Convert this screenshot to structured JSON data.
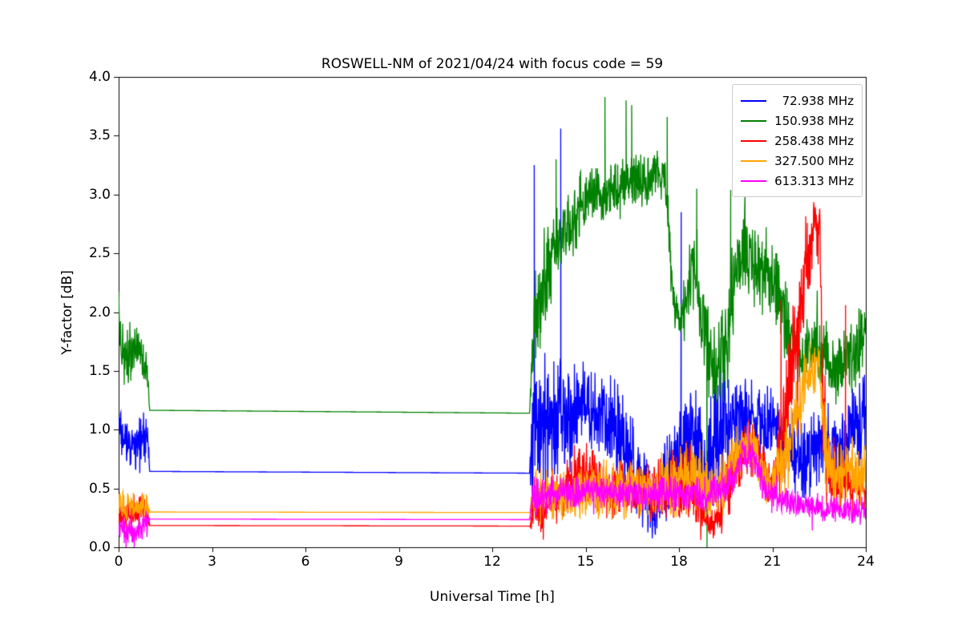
{
  "chart_data": {
    "type": "line",
    "title": "ROSWELL-NM of 2021/04/24 with focus code = 59",
    "xlabel": "Universal Time [h]",
    "ylabel": "Y-factor [dB]",
    "xlim": [
      0,
      24
    ],
    "ylim": [
      0.0,
      4.0
    ],
    "xticks": [
      0,
      3,
      6,
      9,
      12,
      15,
      18,
      21,
      24
    ],
    "xtick_labels": [
      "0",
      "3",
      "6",
      "9",
      "12",
      "15",
      "18",
      "21",
      "24"
    ],
    "yticks": [
      0.0,
      0.5,
      1.0,
      1.5,
      2.0,
      2.5,
      3.0,
      3.5,
      4.0
    ],
    "ytick_labels": [
      "0.0",
      "0.5",
      "1.0",
      "1.5",
      "2.0",
      "2.5",
      "3.0",
      "3.5",
      "4.0"
    ],
    "grid": false,
    "legend_position": "upper right",
    "series": [
      {
        "name": "72.938 MHz",
        "color": "#0000ff",
        "anchors": [
          [
            0.0,
            1.12,
            0.06
          ],
          [
            0.07,
            0.92,
            0.18
          ],
          [
            0.3,
            0.85,
            0.2
          ],
          [
            0.6,
            0.88,
            0.18
          ],
          [
            0.92,
            0.92,
            0.18
          ],
          [
            1.0,
            0.645,
            0
          ],
          [
            13.2,
            0.63,
            0
          ],
          [
            13.28,
            0.9,
            0.45
          ],
          [
            13.5,
            1.15,
            0.55
          ],
          [
            13.8,
            1.0,
            0.45
          ],
          [
            14.1,
            1.1,
            0.5
          ],
          [
            14.5,
            1.15,
            0.35
          ],
          [
            15.0,
            1.2,
            0.3
          ],
          [
            15.5,
            1.15,
            0.3
          ],
          [
            16.0,
            1.0,
            0.35
          ],
          [
            16.4,
            0.75,
            0.35
          ],
          [
            16.8,
            0.45,
            0.3
          ],
          [
            17.2,
            0.35,
            0.25
          ],
          [
            17.6,
            0.55,
            0.35
          ],
          [
            18.0,
            0.85,
            0.4
          ],
          [
            18.3,
            1.0,
            0.45
          ],
          [
            18.6,
            0.9,
            0.45
          ],
          [
            18.9,
            0.7,
            0.35
          ],
          [
            19.2,
            0.9,
            0.5
          ],
          [
            19.5,
            1.15,
            0.5
          ],
          [
            19.8,
            0.95,
            0.35
          ],
          [
            20.1,
            1.05,
            0.3
          ],
          [
            20.5,
            1.12,
            0.28
          ],
          [
            21.0,
            1.1,
            0.28
          ],
          [
            21.3,
            0.9,
            0.3
          ],
          [
            21.7,
            0.8,
            0.28
          ],
          [
            22.1,
            0.75,
            0.28
          ],
          [
            22.5,
            0.85,
            0.3
          ],
          [
            22.9,
            0.8,
            0.3
          ],
          [
            23.3,
            0.9,
            0.3
          ],
          [
            23.7,
            1.05,
            0.32
          ],
          [
            24.0,
            1.1,
            0.3
          ]
        ],
        "spikes": [
          [
            13.35,
            3.25
          ],
          [
            14.2,
            3.56
          ],
          [
            18.07,
            2.85
          ]
        ]
      },
      {
        "name": "150.938 MHz",
        "color": "#008000",
        "anchors": [
          [
            0.0,
            2.12,
            0.06
          ],
          [
            0.08,
            1.6,
            0.22
          ],
          [
            0.35,
            1.62,
            0.22
          ],
          [
            0.65,
            1.68,
            0.18
          ],
          [
            0.92,
            1.48,
            0.12
          ],
          [
            1.0,
            1.165,
            0
          ],
          [
            13.2,
            1.14,
            0
          ],
          [
            13.3,
            1.85,
            0.35
          ],
          [
            13.55,
            2.1,
            0.4
          ],
          [
            13.85,
            2.45,
            0.35
          ],
          [
            14.15,
            2.6,
            0.3
          ],
          [
            14.5,
            2.72,
            0.28
          ],
          [
            14.9,
            2.95,
            0.22
          ],
          [
            15.3,
            3.0,
            0.2
          ],
          [
            15.7,
            3.05,
            0.2
          ],
          [
            16.1,
            3.08,
            0.2
          ],
          [
            16.5,
            3.1,
            0.2
          ],
          [
            16.9,
            3.12,
            0.18
          ],
          [
            17.3,
            3.18,
            0.15
          ],
          [
            17.55,
            3.15,
            0.15
          ],
          [
            17.8,
            2.2,
            0.25
          ],
          [
            18.0,
            1.9,
            0.15
          ],
          [
            18.2,
            2.1,
            0.3
          ],
          [
            18.45,
            2.35,
            0.3
          ],
          [
            18.7,
            1.95,
            0.3
          ],
          [
            18.95,
            1.6,
            0.35
          ],
          [
            19.2,
            1.5,
            0.3
          ],
          [
            19.5,
            1.7,
            0.4
          ],
          [
            19.8,
            2.3,
            0.35
          ],
          [
            20.1,
            2.5,
            0.3
          ],
          [
            20.45,
            2.4,
            0.28
          ],
          [
            20.8,
            2.3,
            0.28
          ],
          [
            21.1,
            2.15,
            0.3
          ],
          [
            21.5,
            1.85,
            0.3
          ],
          [
            21.9,
            1.65,
            0.28
          ],
          [
            22.3,
            1.7,
            0.3
          ],
          [
            22.7,
            1.6,
            0.28
          ],
          [
            23.1,
            1.55,
            0.25
          ],
          [
            23.5,
            1.65,
            0.3
          ],
          [
            23.8,
            1.75,
            0.3
          ],
          [
            24.0,
            1.95,
            0.2
          ]
        ],
        "spikes": [
          [
            14.05,
            3.3
          ],
          [
            15.62,
            3.83
          ],
          [
            16.3,
            3.8
          ],
          [
            16.48,
            3.76
          ],
          [
            17.62,
            3.66
          ],
          [
            18.57,
            3.05
          ],
          [
            18.9,
            0.0
          ],
          [
            19.66,
            3.04
          ],
          [
            20.12,
            3.0
          ]
        ]
      },
      {
        "name": "258.438 MHz",
        "color": "#ff0000",
        "anchors": [
          [
            0.0,
            0.3,
            0.14
          ],
          [
            0.4,
            0.3,
            0.12
          ],
          [
            0.92,
            0.33,
            0.1
          ],
          [
            1.0,
            0.185,
            0
          ],
          [
            13.2,
            0.18,
            0
          ],
          [
            13.3,
            0.3,
            0.2
          ],
          [
            13.7,
            0.35,
            0.22
          ],
          [
            14.1,
            0.45,
            0.22
          ],
          [
            14.5,
            0.55,
            0.22
          ],
          [
            14.9,
            0.65,
            0.2
          ],
          [
            15.2,
            0.6,
            0.2
          ],
          [
            15.6,
            0.5,
            0.2
          ],
          [
            16.0,
            0.48,
            0.2
          ],
          [
            16.4,
            0.5,
            0.2
          ],
          [
            16.8,
            0.5,
            0.2
          ],
          [
            17.2,
            0.48,
            0.2
          ],
          [
            17.6,
            0.5,
            0.22
          ],
          [
            18.0,
            0.55,
            0.28
          ],
          [
            18.35,
            0.6,
            0.3
          ],
          [
            18.65,
            0.35,
            0.18
          ],
          [
            18.95,
            0.2,
            0.12
          ],
          [
            19.25,
            0.25,
            0.15
          ],
          [
            19.55,
            0.5,
            0.22
          ],
          [
            19.85,
            0.7,
            0.22
          ],
          [
            20.15,
            0.85,
            0.2
          ],
          [
            20.45,
            0.82,
            0.2
          ],
          [
            20.75,
            0.62,
            0.2
          ],
          [
            21.0,
            0.5,
            0.15
          ],
          [
            21.35,
            0.9,
            0.4
          ],
          [
            21.6,
            1.5,
            0.45
          ],
          [
            21.9,
            2.1,
            0.4
          ],
          [
            22.15,
            2.5,
            0.3
          ],
          [
            22.4,
            2.75,
            0.2
          ],
          [
            22.52,
            2.7,
            0.25
          ],
          [
            22.62,
            1.3,
            0.5
          ],
          [
            22.75,
            0.65,
            0.28
          ],
          [
            23.0,
            0.6,
            0.22
          ],
          [
            23.3,
            0.6,
            0.22
          ],
          [
            23.6,
            0.55,
            0.2
          ],
          [
            24.0,
            0.5,
            0.18
          ]
        ],
        "spikes": [
          [
            21.28,
            2.1
          ],
          [
            23.35,
            2.06
          ]
        ]
      },
      {
        "name": "327.500 MHz",
        "color": "#ffa500",
        "anchors": [
          [
            0.0,
            0.36,
            0.1
          ],
          [
            0.5,
            0.34,
            0.1
          ],
          [
            0.92,
            0.36,
            0.08
          ],
          [
            1.0,
            0.3,
            0
          ],
          [
            13.2,
            0.295,
            0
          ],
          [
            13.3,
            0.42,
            0.18
          ],
          [
            14.0,
            0.45,
            0.18
          ],
          [
            15.0,
            0.46,
            0.18
          ],
          [
            16.0,
            0.5,
            0.2
          ],
          [
            17.0,
            0.5,
            0.2
          ],
          [
            18.0,
            0.55,
            0.25
          ],
          [
            18.6,
            0.6,
            0.28
          ],
          [
            19.0,
            0.5,
            0.22
          ],
          [
            19.4,
            0.55,
            0.22
          ],
          [
            19.8,
            0.75,
            0.2
          ],
          [
            20.1,
            0.9,
            0.18
          ],
          [
            20.4,
            0.85,
            0.18
          ],
          [
            20.7,
            0.62,
            0.18
          ],
          [
            21.0,
            0.5,
            0.15
          ],
          [
            21.4,
            0.8,
            0.3
          ],
          [
            21.8,
            1.2,
            0.3
          ],
          [
            22.2,
            1.5,
            0.25
          ],
          [
            22.5,
            1.58,
            0.2
          ],
          [
            22.7,
            0.85,
            0.3
          ],
          [
            23.0,
            0.6,
            0.22
          ],
          [
            23.35,
            0.72,
            0.25
          ],
          [
            23.7,
            0.6,
            0.22
          ],
          [
            24.0,
            0.55,
            0.2
          ]
        ],
        "spikes": []
      },
      {
        "name": "613.313 MHz",
        "color": "#ff00ff",
        "anchors": [
          [
            0.0,
            0.15,
            0.12
          ],
          [
            0.4,
            0.14,
            0.12
          ],
          [
            0.92,
            0.18,
            0.1
          ],
          [
            1.0,
            0.24,
            0
          ],
          [
            13.2,
            0.235,
            0
          ],
          [
            13.3,
            0.45,
            0.14
          ],
          [
            14.0,
            0.46,
            0.12
          ],
          [
            15.0,
            0.48,
            0.12
          ],
          [
            16.0,
            0.46,
            0.12
          ],
          [
            17.0,
            0.45,
            0.12
          ],
          [
            18.0,
            0.46,
            0.12
          ],
          [
            18.6,
            0.44,
            0.12
          ],
          [
            19.0,
            0.45,
            0.12
          ],
          [
            19.5,
            0.52,
            0.12
          ],
          [
            19.8,
            0.62,
            0.14
          ],
          [
            20.1,
            0.8,
            0.12
          ],
          [
            20.4,
            0.76,
            0.12
          ],
          [
            20.7,
            0.52,
            0.12
          ],
          [
            21.0,
            0.42,
            0.1
          ],
          [
            21.5,
            0.38,
            0.1
          ],
          [
            22.0,
            0.36,
            0.1
          ],
          [
            22.5,
            0.34,
            0.1
          ],
          [
            23.0,
            0.32,
            0.1
          ],
          [
            23.5,
            0.3,
            0.1
          ],
          [
            24.0,
            0.3,
            0.1
          ]
        ],
        "spikes": []
      }
    ]
  }
}
